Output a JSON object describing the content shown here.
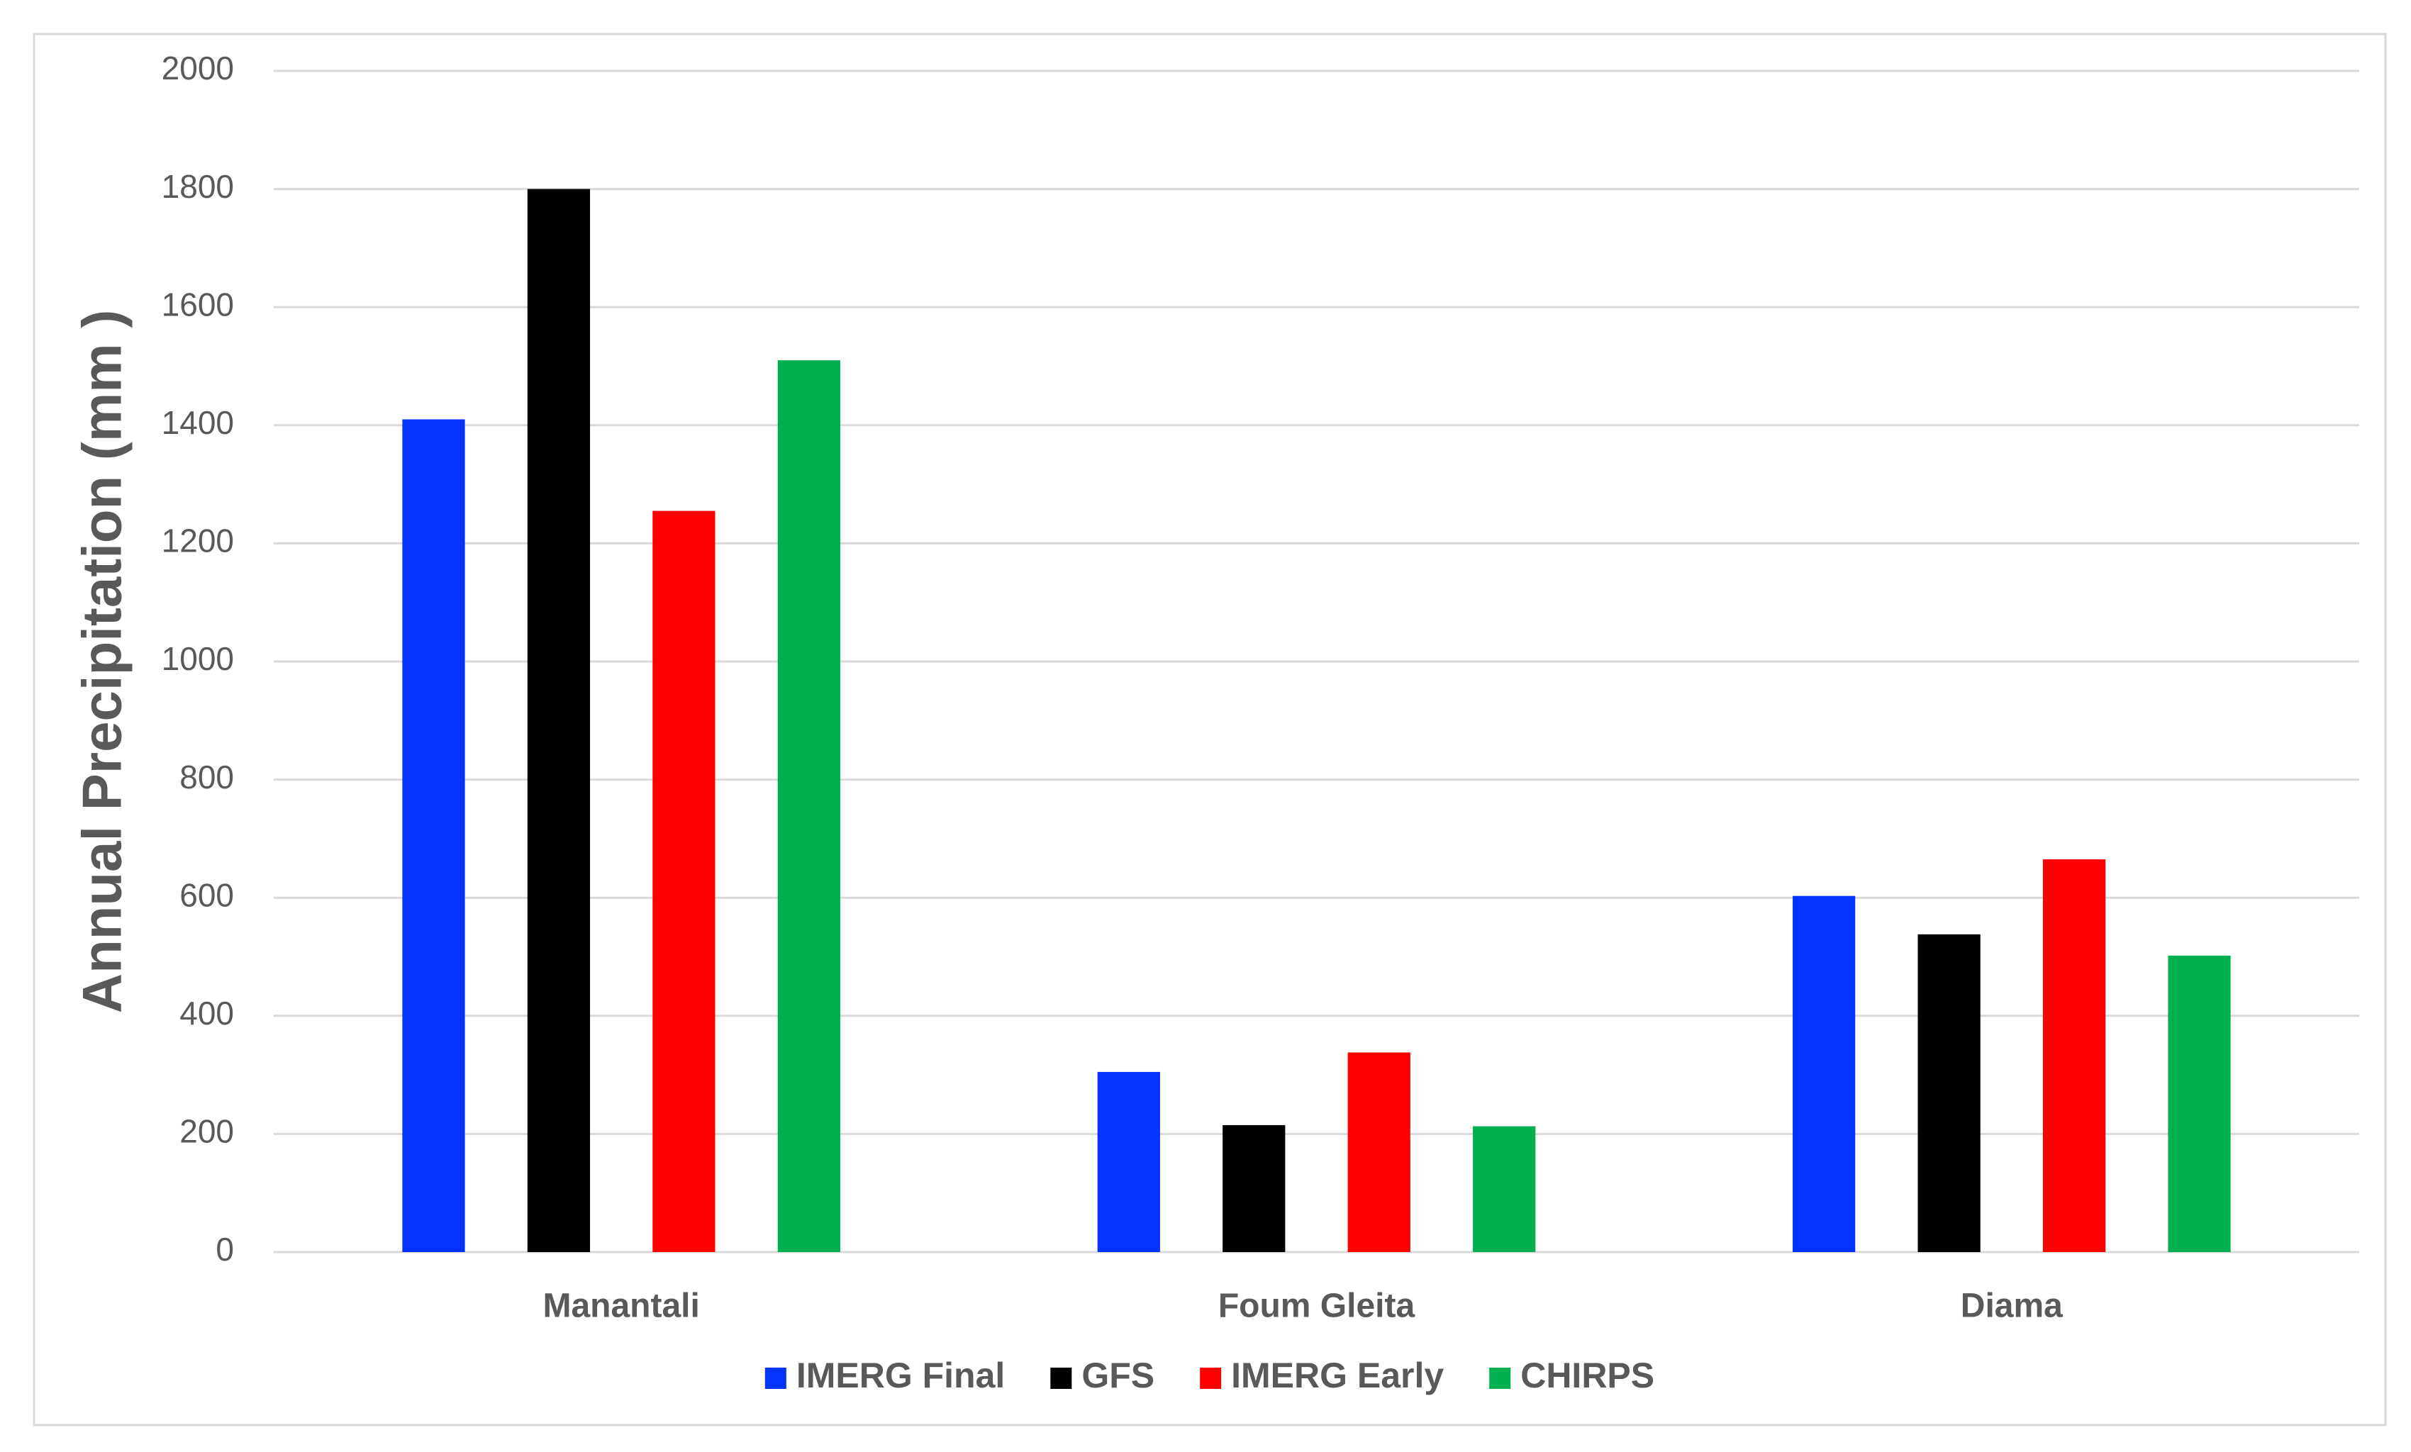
{
  "chart_data": {
    "type": "bar",
    "y_label": "Annual Precipitation (mm )",
    "categories": [
      "Manantali",
      "Foum Gleita",
      "Diama"
    ],
    "series": [
      {
        "name": "IMERG Final",
        "color": "#0433ff",
        "values": [
          1410,
          305,
          603
        ]
      },
      {
        "name": "GFS",
        "color": "#000000",
        "values": [
          1800,
          215,
          538
        ]
      },
      {
        "name": "IMERG Early",
        "color": "#ff0000",
        "values": [
          1255,
          338,
          665
        ]
      },
      {
        "name": "CHIRPS",
        "color": "#00b050",
        "values": [
          1510,
          213,
          502
        ]
      }
    ],
    "ylim": [
      0,
      2000
    ],
    "yticks": [
      0,
      200,
      400,
      600,
      800,
      1000,
      1200,
      1400,
      1600,
      1800,
      2000
    ],
    "grid": true,
    "legend": "bottom"
  }
}
